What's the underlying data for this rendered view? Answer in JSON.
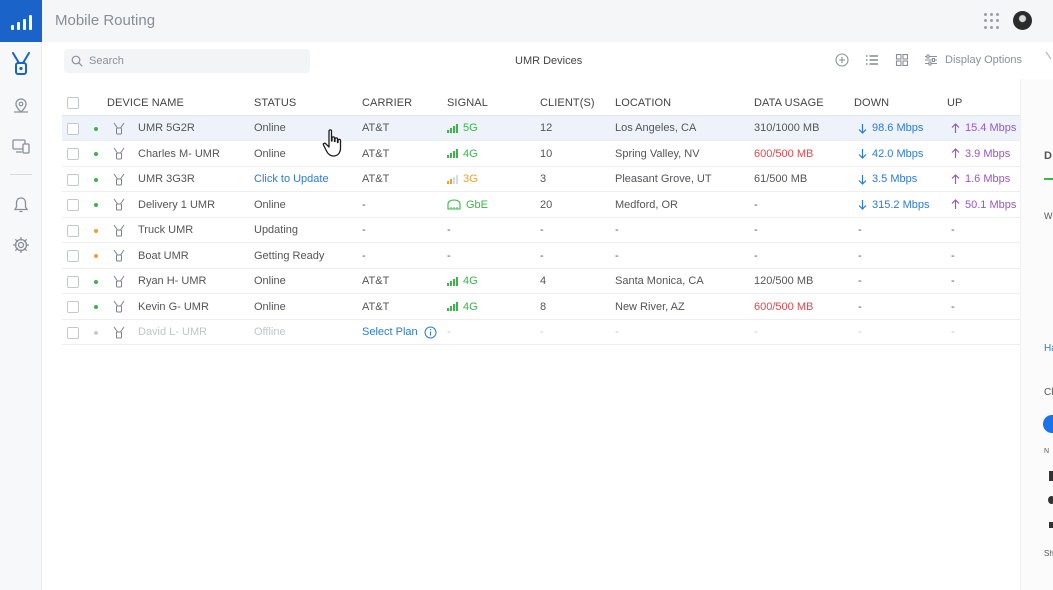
{
  "app": {
    "title": "Mobile Routing"
  },
  "toolbar": {
    "search_placeholder": "Search",
    "view_title": "UMR Devices",
    "display_options_label": "Display Options"
  },
  "table": {
    "headers": {
      "device_name": "DEVICE NAME",
      "status": "STATUS",
      "carrier": "CARRIER",
      "signal": "SIGNAL",
      "clients": "CLIENT(S)",
      "location": "LOCATION",
      "data_usage": "DATA USAGE",
      "down": "DOWN",
      "up": "UP"
    },
    "rows": [
      {
        "name": "UMR 5G2R",
        "status": "Online",
        "carrier": "AT&T",
        "signal": "5G",
        "clients": "12",
        "location": "Los Angeles, CA",
        "data_usage": "310/1000 MB",
        "down": "98.6 Mbps",
        "up": "15.4 Mbps"
      },
      {
        "name": "Charles M- UMR",
        "status": "Online",
        "carrier": "AT&T",
        "signal": "4G",
        "clients": "10",
        "location": "Spring Valley, NV",
        "data_usage": "600/500 MB",
        "down": "42.0 Mbps",
        "up": "3.9 Mbps"
      },
      {
        "name": "UMR 3G3R",
        "status": "Click to Update",
        "carrier": "AT&T",
        "signal": "3G",
        "clients": "3",
        "location": "Pleasant Grove, UT",
        "data_usage": "61/500 MB",
        "down": "3.5 Mbps",
        "up": "1.6 Mbps"
      },
      {
        "name": "Delivery 1 UMR",
        "status": "Online",
        "carrier": "-",
        "signal": "GbE",
        "clients": "20",
        "location": "Medford, OR",
        "data_usage": "-",
        "down": "315.2 Mbps",
        "up": "50.1 Mbps"
      },
      {
        "name": "Truck UMR",
        "status": "Updating",
        "carrier": "-",
        "signal": "-",
        "clients": "-",
        "location": "-",
        "data_usage": "-",
        "down": "-",
        "up": "-"
      },
      {
        "name": "Boat UMR",
        "status": "Getting Ready",
        "carrier": "-",
        "signal": "-",
        "clients": "-",
        "location": "-",
        "data_usage": "-",
        "down": "-",
        "up": "-"
      },
      {
        "name": "Ryan H- UMR",
        "status": "Online",
        "carrier": "AT&T",
        "signal": "4G",
        "clients": "4",
        "location": "Santa Monica, CA",
        "data_usage": "120/500 MB",
        "down": "-",
        "up": "-"
      },
      {
        "name": "Kevin G- UMR",
        "status": "Online",
        "carrier": "AT&T",
        "signal": "4G",
        "clients": "8",
        "location": "New River, AZ",
        "data_usage": "600/500 MB",
        "down": "-",
        "up": "-"
      },
      {
        "name": "David L- UMR",
        "status": "Offline",
        "carrier": "Select Plan",
        "signal": "-",
        "clients": "-",
        "location": "-",
        "data_usage": "-",
        "down": "-",
        "up": "-"
      }
    ]
  },
  "right_panel": {
    "fragments": [
      "D",
      "W",
      "Ha",
      "Cl",
      "N",
      "Sh"
    ]
  },
  "colors": {
    "accent": "#1a63c8",
    "link": "#2b7bd6",
    "online": "#3ab54a",
    "updating": "#f0a030",
    "offline": "#c8ccd2",
    "over_limit": "#e0484b",
    "upload": "#9a55c9",
    "signal_good": "#3ab54a",
    "signal_weak": "#f0a030"
  },
  "icons": [
    "signal-bars-icon",
    "umr-device-icon",
    "location-pin-icon",
    "devices-icon",
    "bell-icon",
    "gear-icon",
    "search-icon",
    "plus-circle-icon",
    "list-view-icon",
    "grid-view-icon",
    "sliders-icon",
    "apps-grid-icon",
    "info-icon",
    "arrow-down-icon",
    "arrow-up-icon",
    "hand-cursor-icon"
  ]
}
